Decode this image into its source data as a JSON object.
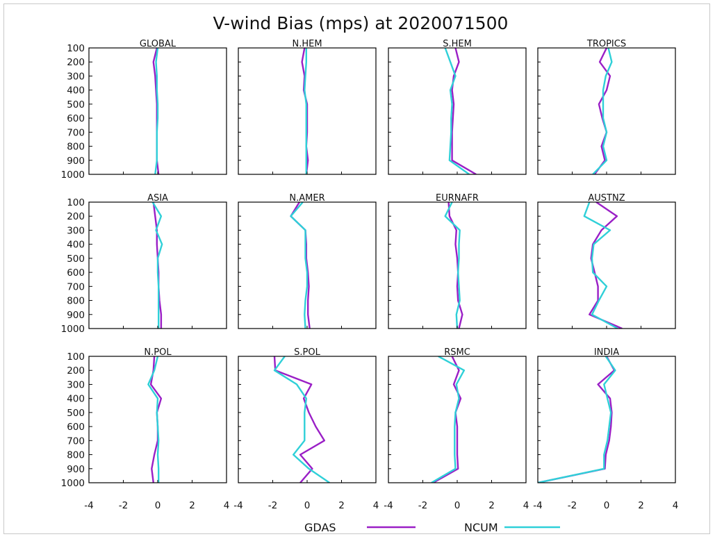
{
  "chart_data": {
    "type": "line",
    "title": "V-wind Bias (mps) at 2020071500",
    "xlim": [
      -4,
      4
    ],
    "ylim": [
      100,
      1000
    ],
    "y_inverted": true,
    "x_ticks": [
      "-4",
      "-2",
      "0",
      "2",
      "4"
    ],
    "y_levels": [
      100,
      200,
      300,
      400,
      500,
      600,
      700,
      800,
      900,
      1000
    ],
    "y_tick_labels": [
      "100",
      "200",
      "300",
      "400",
      "500",
      "600",
      "700",
      "800",
      "900",
      "1000"
    ],
    "grid": false,
    "legend_position": "bottom-center",
    "series_colors": {
      "GDAS": "#9a1fc6",
      "NCUM": "#2fd0d8"
    },
    "legend": [
      {
        "name": "GDAS",
        "color": "#9a1fc6"
      },
      {
        "name": "NCUM",
        "color": "#2fd0d8"
      }
    ],
    "panels": [
      {
        "name": "GLOBAL",
        "series": [
          {
            "name": "GDAS",
            "values": [
              -0.05,
              -0.25,
              -0.15,
              -0.1,
              -0.05,
              -0.05,
              -0.05,
              -0.05,
              -0.05,
              0.05
            ]
          },
          {
            "name": "NCUM",
            "values": [
              0.0,
              -0.1,
              -0.05,
              -0.05,
              0.0,
              0.0,
              -0.05,
              -0.05,
              -0.05,
              -0.15
            ]
          }
        ]
      },
      {
        "name": "N.HEM",
        "series": [
          {
            "name": "GDAS",
            "values": [
              -0.15,
              -0.3,
              -0.15,
              -0.2,
              0.0,
              0.0,
              0.0,
              -0.05,
              0.05,
              -0.05
            ]
          },
          {
            "name": "NCUM",
            "values": [
              -0.05,
              -0.05,
              -0.1,
              -0.15,
              -0.05,
              -0.05,
              -0.05,
              -0.05,
              -0.05,
              -0.05
            ]
          }
        ]
      },
      {
        "name": "S.HEM",
        "series": [
          {
            "name": "GDAS",
            "values": [
              -0.1,
              0.1,
              -0.2,
              -0.3,
              -0.2,
              -0.25,
              -0.3,
              -0.3,
              -0.3,
              1.1
            ]
          },
          {
            "name": "NCUM",
            "values": [
              -0.7,
              -0.4,
              -0.1,
              -0.4,
              -0.3,
              -0.35,
              -0.35,
              -0.4,
              -0.45,
              0.7
            ]
          }
        ]
      },
      {
        "name": "TROPICS",
        "series": [
          {
            "name": "GDAS",
            "values": [
              0.0,
              -0.4,
              0.2,
              0.0,
              -0.45,
              -0.25,
              0.0,
              -0.3,
              -0.1,
              -0.7
            ]
          },
          {
            "name": "NCUM",
            "values": [
              0.1,
              0.3,
              -0.05,
              -0.2,
              -0.2,
              -0.2,
              0.0,
              -0.2,
              0.0,
              -0.8
            ]
          }
        ]
      },
      {
        "name": "ASIA",
        "series": [
          {
            "name": "GDAS",
            "values": [
              -0.25,
              -0.15,
              -0.05,
              -0.05,
              0.0,
              0.05,
              0.05,
              0.1,
              0.2,
              0.2
            ]
          },
          {
            "name": "NCUM",
            "values": [
              -0.3,
              0.2,
              -0.1,
              0.25,
              0.0,
              0.0,
              0.05,
              0.05,
              0.05,
              0.05
            ]
          }
        ]
      },
      {
        "name": "N.AMER",
        "series": [
          {
            "name": "GDAS",
            "values": [
              -0.45,
              -0.95,
              -0.1,
              -0.05,
              -0.05,
              0.05,
              0.1,
              0.05,
              0.05,
              0.15
            ]
          },
          {
            "name": "NCUM",
            "values": [
              -0.25,
              -0.95,
              -0.1,
              -0.1,
              -0.1,
              0.0,
              0.0,
              -0.1,
              -0.15,
              -0.1
            ]
          }
        ]
      },
      {
        "name": "EURNAFR",
        "series": [
          {
            "name": "GDAS",
            "values": [
              -0.5,
              -0.45,
              -0.05,
              -0.1,
              0.0,
              0.05,
              0.0,
              0.05,
              0.3,
              0.1
            ]
          },
          {
            "name": "NCUM",
            "values": [
              -0.3,
              -0.7,
              0.15,
              0.1,
              0.1,
              0.05,
              0.1,
              0.15,
              -0.05,
              0.0
            ]
          }
        ]
      },
      {
        "name": "AUSTNZ",
        "series": [
          {
            "name": "GDAS",
            "values": [
              -0.6,
              0.6,
              -0.3,
              -0.8,
              -0.9,
              -0.7,
              -0.5,
              -0.5,
              -1.0,
              0.9
            ]
          },
          {
            "name": "NCUM",
            "values": [
              -1.0,
              -1.3,
              0.2,
              -0.75,
              -0.85,
              -0.8,
              0.0,
              -0.45,
              -0.85,
              0.65
            ]
          }
        ]
      },
      {
        "name": "N.POL",
        "series": [
          {
            "name": "GDAS",
            "values": [
              -0.2,
              -0.25,
              -0.4,
              0.2,
              -0.05,
              0.0,
              0.0,
              -0.2,
              -0.35,
              -0.25
            ]
          },
          {
            "name": "NCUM",
            "values": [
              0.0,
              -0.2,
              -0.55,
              0.0,
              -0.05,
              0.0,
              0.05,
              0.0,
              0.05,
              0.05
            ]
          }
        ]
      },
      {
        "name": "S.POL",
        "series": [
          {
            "name": "GDAS",
            "values": [
              -1.9,
              -1.85,
              0.25,
              -0.2,
              0.1,
              0.5,
              1.0,
              -0.4,
              0.3,
              -0.4
            ]
          },
          {
            "name": "NCUM",
            "values": [
              -1.3,
              -1.9,
              -0.6,
              -0.05,
              -0.15,
              -0.15,
              -0.15,
              -0.8,
              0.1,
              1.3
            ]
          }
        ]
      },
      {
        "name": "RSMC",
        "series": [
          {
            "name": "GDAS",
            "values": [
              -0.3,
              0.1,
              -0.2,
              0.2,
              -0.1,
              0.0,
              0.0,
              0.0,
              0.05,
              -1.4
            ]
          },
          {
            "name": "NCUM",
            "values": [
              -1.1,
              0.4,
              -0.05,
              0.1,
              -0.1,
              -0.15,
              -0.15,
              -0.15,
              -0.1,
              -1.5
            ]
          }
        ]
      },
      {
        "name": "INDIA",
        "series": [
          {
            "name": "GDAS",
            "values": [
              0.0,
              0.45,
              -0.5,
              0.2,
              0.3,
              0.25,
              0.15,
              -0.05,
              -0.1,
              -4.0
            ]
          },
          {
            "name": "NCUM",
            "values": [
              -0.05,
              0.5,
              -0.15,
              0.05,
              0.25,
              0.15,
              0.05,
              -0.15,
              -0.15,
              -4.0
            ]
          }
        ]
      }
    ]
  }
}
